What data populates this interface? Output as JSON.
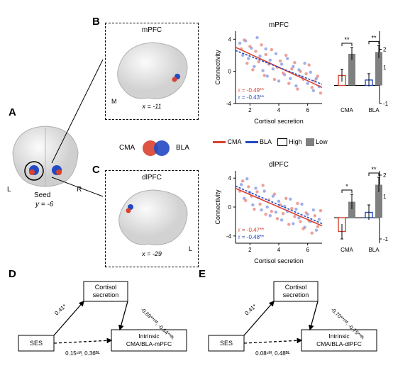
{
  "labels": {
    "A": "A",
    "B": "B",
    "C": "C",
    "D": "D",
    "E": "E"
  },
  "seed": {
    "title": "Seed",
    "coord": "y = -6",
    "L": "L",
    "R": "R"
  },
  "mpfc": {
    "title": "mPFC",
    "coord": "x = -11",
    "M": "M"
  },
  "dlpfc": {
    "title": "dlPFC",
    "coord": "x = -29",
    "L": "L"
  },
  "group_legend": {
    "cma": "CMA",
    "bla": "BLA"
  },
  "line_legend": {
    "cma": "CMA",
    "bla": "BLA",
    "high": "High",
    "low": "Low"
  },
  "colors": {
    "cma": "#d9412f",
    "cma_fill": "#eb8f84",
    "bla": "#2249c3",
    "bla_fill": "#8ea2e6",
    "highlow": "#808080",
    "axis": "#000000",
    "brain_spot_red": "#d9412f",
    "brain_spot_blue": "#2249c3"
  },
  "scatter_mpfc": {
    "title": "mPFC",
    "xlabel": "Cortisol secretion",
    "ylabel": "Connectivity",
    "xlim": [
      1,
      7
    ],
    "ylim": [
      -4,
      5
    ],
    "xticks": [
      2,
      4,
      6
    ],
    "yticks": [
      -4,
      0,
      4
    ],
    "r_cma": "r = -0.49**",
    "r_bla": "r = -0.43**",
    "cma_line": {
      "x1": 1,
      "y1": 3.0,
      "x2": 7,
      "y2": -2.0
    },
    "bla_line": {
      "x1": 1,
      "y1": 2.6,
      "x2": 7,
      "y2": -1.6
    },
    "cma_points": [
      [
        1.4,
        2.8
      ],
      [
        1.6,
        3.9
      ],
      [
        1.8,
        1.0
      ],
      [
        2.0,
        3.1
      ],
      [
        2.2,
        0.2
      ],
      [
        2.4,
        2.5
      ],
      [
        2.6,
        1.2
      ],
      [
        2.8,
        3.3
      ],
      [
        3.0,
        -0.5
      ],
      [
        3.1,
        2.1
      ],
      [
        3.3,
        0.9
      ],
      [
        3.5,
        2.7
      ],
      [
        3.7,
        -1.0
      ],
      [
        3.9,
        0.5
      ],
      [
        4.1,
        1.3
      ],
      [
        4.3,
        -0.2
      ],
      [
        4.5,
        2.0
      ],
      [
        4.7,
        -1.5
      ],
      [
        4.9,
        0.3
      ],
      [
        5.1,
        1.1
      ],
      [
        5.3,
        -2.2
      ],
      [
        5.5,
        0.0
      ],
      [
        5.7,
        -1.0
      ],
      [
        5.9,
        -0.3
      ],
      [
        6.1,
        0.8
      ],
      [
        6.3,
        -2.0
      ],
      [
        6.5,
        -1.2
      ],
      [
        6.7,
        -0.6
      ],
      [
        6.9,
        -2.7
      ]
    ],
    "bla_points": [
      [
        1.3,
        3.5
      ],
      [
        1.5,
        2.0
      ],
      [
        1.7,
        3.8
      ],
      [
        1.9,
        1.6
      ],
      [
        2.1,
        2.9
      ],
      [
        2.3,
        0.6
      ],
      [
        2.5,
        4.2
      ],
      [
        2.7,
        1.9
      ],
      [
        2.9,
        0.1
      ],
      [
        3.1,
        2.8
      ],
      [
        3.2,
        -0.6
      ],
      [
        3.4,
        1.4
      ],
      [
        3.6,
        0.3
      ],
      [
        3.8,
        2.2
      ],
      [
        4.0,
        -1.2
      ],
      [
        4.2,
        0.9
      ],
      [
        4.4,
        -0.4
      ],
      [
        4.6,
        1.6
      ],
      [
        4.8,
        -0.9
      ],
      [
        5.0,
        0.6
      ],
      [
        5.2,
        -1.8
      ],
      [
        5.4,
        0.2
      ],
      [
        5.6,
        -0.7
      ],
      [
        5.8,
        1.0
      ],
      [
        6.0,
        -1.5
      ],
      [
        6.2,
        -0.1
      ],
      [
        6.4,
        -2.4
      ],
      [
        6.6,
        -0.9
      ],
      [
        6.8,
        -1.9
      ]
    ]
  },
  "scatter_dlpfc": {
    "title": "dlPFC",
    "xlabel": "Cortisol secretion",
    "ylabel": "Connectivity",
    "xlim": [
      1,
      7
    ],
    "ylim": [
      -5,
      5
    ],
    "xticks": [
      2,
      4,
      6
    ],
    "yticks": [
      -4,
      0,
      4
    ],
    "r_cma": "r = -0.47**",
    "r_bla": "r = -0.48**",
    "cma_line": {
      "x1": 1,
      "y1": 2.6,
      "x2": 7,
      "y2": -2.6
    },
    "bla_line": {
      "x1": 1,
      "y1": 2.9,
      "x2": 7,
      "y2": -2.3
    },
    "cma_points": [
      [
        1.3,
        2.2
      ],
      [
        1.5,
        3.6
      ],
      [
        1.7,
        0.9
      ],
      [
        1.9,
        2.8
      ],
      [
        2.1,
        1.5
      ],
      [
        2.3,
        -0.3
      ],
      [
        2.5,
        2.1
      ],
      [
        2.7,
        0.4
      ],
      [
        2.9,
        3.0
      ],
      [
        3.1,
        -1.0
      ],
      [
        3.3,
        1.0
      ],
      [
        3.5,
        -0.6
      ],
      [
        3.7,
        1.8
      ],
      [
        3.9,
        -1.6
      ],
      [
        4.1,
        0.3
      ],
      [
        4.3,
        -0.9
      ],
      [
        4.5,
        1.2
      ],
      [
        4.7,
        -2.4
      ],
      [
        4.9,
        -0.2
      ],
      [
        5.1,
        -1.3
      ],
      [
        5.3,
        0.5
      ],
      [
        5.5,
        -2.0
      ],
      [
        5.7,
        -3.0
      ],
      [
        5.9,
        -0.8
      ],
      [
        6.1,
        -1.9
      ],
      [
        6.3,
        -3.6
      ],
      [
        6.5,
        -1.2
      ],
      [
        6.7,
        -2.7
      ],
      [
        6.9,
        -0.5
      ]
    ],
    "bla_points": [
      [
        1.4,
        3.1
      ],
      [
        1.6,
        1.2
      ],
      [
        1.8,
        3.9
      ],
      [
        2.0,
        2.0
      ],
      [
        2.2,
        0.3
      ],
      [
        2.4,
        2.6
      ],
      [
        2.6,
        1.3
      ],
      [
        2.8,
        -0.4
      ],
      [
        3.0,
        2.2
      ],
      [
        3.2,
        0.0
      ],
      [
        3.4,
        -1.2
      ],
      [
        3.6,
        1.5
      ],
      [
        3.8,
        -0.7
      ],
      [
        4.0,
        0.8
      ],
      [
        4.2,
        -1.8
      ],
      [
        4.4,
        0.1
      ],
      [
        4.6,
        -0.6
      ],
      [
        4.8,
        1.1
      ],
      [
        5.0,
        -2.3
      ],
      [
        5.2,
        -0.3
      ],
      [
        5.4,
        -1.5
      ],
      [
        5.6,
        0.4
      ],
      [
        5.8,
        -2.8
      ],
      [
        6.0,
        -1.0
      ],
      [
        6.2,
        -2.0
      ],
      [
        6.4,
        -0.4
      ],
      [
        6.6,
        -3.2
      ],
      [
        6.8,
        -1.7
      ]
    ]
  },
  "bars_mpfc": {
    "ylim": [
      -1,
      3
    ],
    "yticks": [
      0,
      2
    ],
    "yticks_right": [
      -1,
      1,
      2
    ],
    "cma_high": 0.55,
    "cma_low": 1.75,
    "bla_high": 0.3,
    "bla_low": 1.85,
    "err": 0.35,
    "sig_cma": "**",
    "sig_bla": "**",
    "xlab_cma": "CMA",
    "xlab_bla": "BLA"
  },
  "bars_dlpfc": {
    "ylim": [
      -1.2,
      2.2
    ],
    "yticks": [
      -1,
      1,
      2
    ],
    "cma_high": -0.65,
    "cma_low": 0.75,
    "bla_high": 0.25,
    "bla_low": 1.55,
    "err": 0.35,
    "sig_cma": "*",
    "sig_bla": "**",
    "xlab_cma": "CMA",
    "xlab_bla": "BLA"
  },
  "mediation_D": {
    "box_top": "Cortisol\nsecretion",
    "box_left": "SES",
    "box_right": "Intrinsic\nCMA/BLA-mPFC",
    "a": "0.41*",
    "b": "-0.69**ᶜᴹ; -0.64**ᴮᴸ",
    "c": "0.15ᶜᴹ, 0.36ᴮᴸ"
  },
  "mediation_E": {
    "box_top": "Cortisol\nsecretion",
    "box_left": "SES",
    "box_right": "Intrinsic\nCMA/BLA-dlPFC",
    "a": "0.41*",
    "b": "-0.70**ᶜᴹ; -0.75**ᴮᴸ",
    "c": "0.08ᶜᴹ, 0.48ᴮᴸ"
  }
}
